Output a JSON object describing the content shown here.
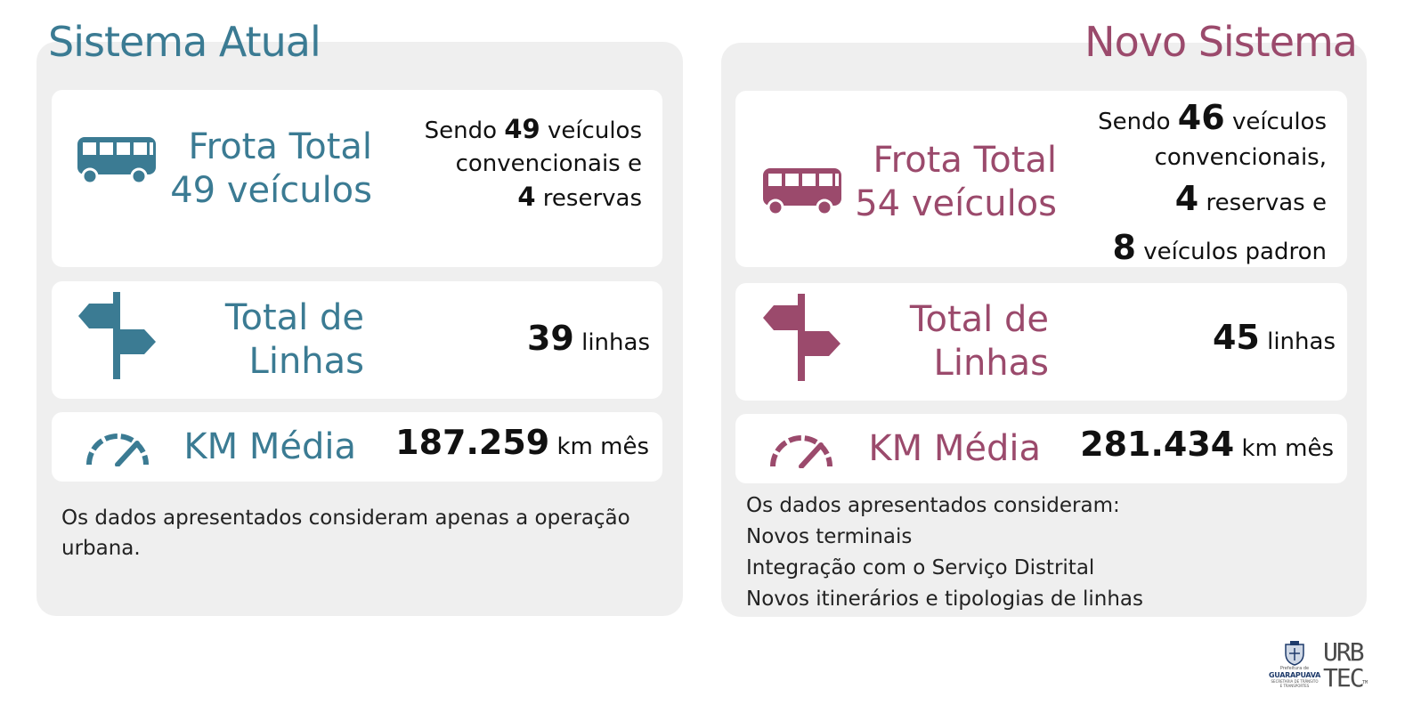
{
  "colors": {
    "current_accent": "#3b7b93",
    "new_accent": "#9b4a6c",
    "panel_bg": "#efefef",
    "card_bg": "#ffffff"
  },
  "current": {
    "title": "Sistema Atual",
    "fleet": {
      "title_line1": "Frota Total",
      "title_line2": "49 veículos",
      "line1_pre": "Sendo",
      "line1_num": "49",
      "line1_post": "veículos",
      "line2": "convencionais e",
      "line3_num": "4",
      "line3_post": "reservas",
      "icon": "bus-icon"
    },
    "lines": {
      "title_line1": "Total de",
      "title_line2": "Linhas",
      "value": "39",
      "unit": "linhas",
      "icon": "signpost-icon"
    },
    "km": {
      "title": "KM Média",
      "value": "187.259",
      "unit": "km mês",
      "icon": "speedometer-icon"
    },
    "note": "Os dados apresentados consideram apenas a operação urbana."
  },
  "new": {
    "title": "Novo Sistema",
    "fleet": {
      "title_line1": "Frota Total",
      "title_line2": "54 veículos",
      "line1_pre": "Sendo",
      "line1_num": "46",
      "line1_post": "veículos",
      "line2": "convencionais,",
      "line3_num": "4",
      "line3_post": "reservas e",
      "line4_num": "8",
      "line4_post": "veículos padron",
      "icon": "bus-icon"
    },
    "lines": {
      "title_line1": "Total de",
      "title_line2": "Linhas",
      "value": "45",
      "unit": "linhas",
      "icon": "signpost-icon"
    },
    "km": {
      "title": "KM Média",
      "value": "281.434",
      "unit": "km mês",
      "icon": "speedometer-icon"
    },
    "notes": [
      "Os dados apresentados consideram:",
      "Novos terminais",
      "Integração com o Serviço Distrital",
      "Novos itinerários e tipologias de linhas"
    ]
  },
  "logos": {
    "prefeitura": {
      "small_top": "Prefeitura de",
      "name": "GUARAPUAVA",
      "sub1": "SECRETARIA DE TRÂNSITO",
      "sub2": "E TRANSPORTES"
    },
    "urbtec": {
      "line1": "URB",
      "line2": "TEC",
      "tm": "TM"
    }
  }
}
